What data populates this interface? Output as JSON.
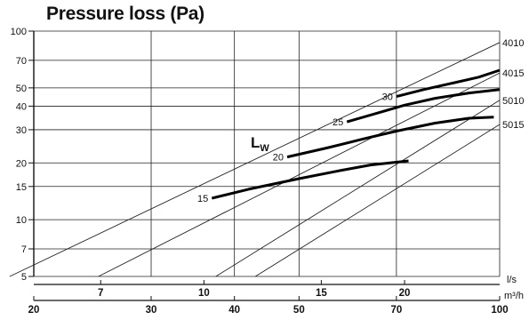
{
  "chart_data": {
    "type": "line",
    "title": "Pressure loss (Pa)",
    "xscale": "log",
    "yscale": "log",
    "grid": true,
    "x_axis_ls": {
      "unit": "l/s",
      "ticks": [
        7,
        10,
        15,
        20
      ]
    },
    "x_axis_m3h": {
      "unit": "m³/h",
      "ticks": [
        20,
        30,
        40,
        50,
        70,
        100
      ],
      "range": [
        20,
        100
      ]
    },
    "y_axis": {
      "ticks": [
        5,
        7,
        10,
        15,
        20,
        30,
        40,
        50,
        70,
        100
      ],
      "range": [
        5,
        100
      ]
    },
    "series": [
      {
        "name": "4010",
        "points": [
          [
            18.4,
            5
          ],
          [
            100,
            87
          ]
        ]
      },
      {
        "name": "4015",
        "points": [
          [
            25,
            5
          ],
          [
            100,
            60
          ]
        ]
      },
      {
        "name": "5010",
        "points": [
          [
            37.5,
            5
          ],
          [
            100,
            43
          ]
        ]
      },
      {
        "name": "5015",
        "points": [
          [
            43,
            5
          ],
          [
            100,
            32
          ]
        ]
      }
    ],
    "sound_curves": {
      "label": "L",
      "label_sub": "W",
      "curves": [
        {
          "level": "15",
          "points": [
            [
              37,
              13
            ],
            [
              42,
              14.5
            ],
            [
              50,
              16.5
            ],
            [
              58,
              18.3
            ],
            [
              64,
              19.5
            ],
            [
              73,
              20.5
            ]
          ]
        },
        {
          "level": "20",
          "points": [
            [
              48,
              21.5
            ],
            [
              55,
              24
            ],
            [
              63,
              27
            ],
            [
              70,
              29.5
            ],
            [
              80,
              32.5
            ],
            [
              90,
              34.5
            ],
            [
              98,
              35
            ]
          ]
        },
        {
          "level": "25",
          "points": [
            [
              59,
              33
            ],
            [
              66,
              37
            ],
            [
              72,
              40.5
            ],
            [
              80,
              44
            ],
            [
              90,
              47
            ],
            [
              100,
              49
            ]
          ]
        },
        {
          "level": "30",
          "points": [
            [
              70,
              45
            ],
            [
              77,
              49
            ],
            [
              85,
              53
            ],
            [
              93,
              57
            ],
            [
              100,
              62
            ]
          ]
        }
      ]
    }
  }
}
